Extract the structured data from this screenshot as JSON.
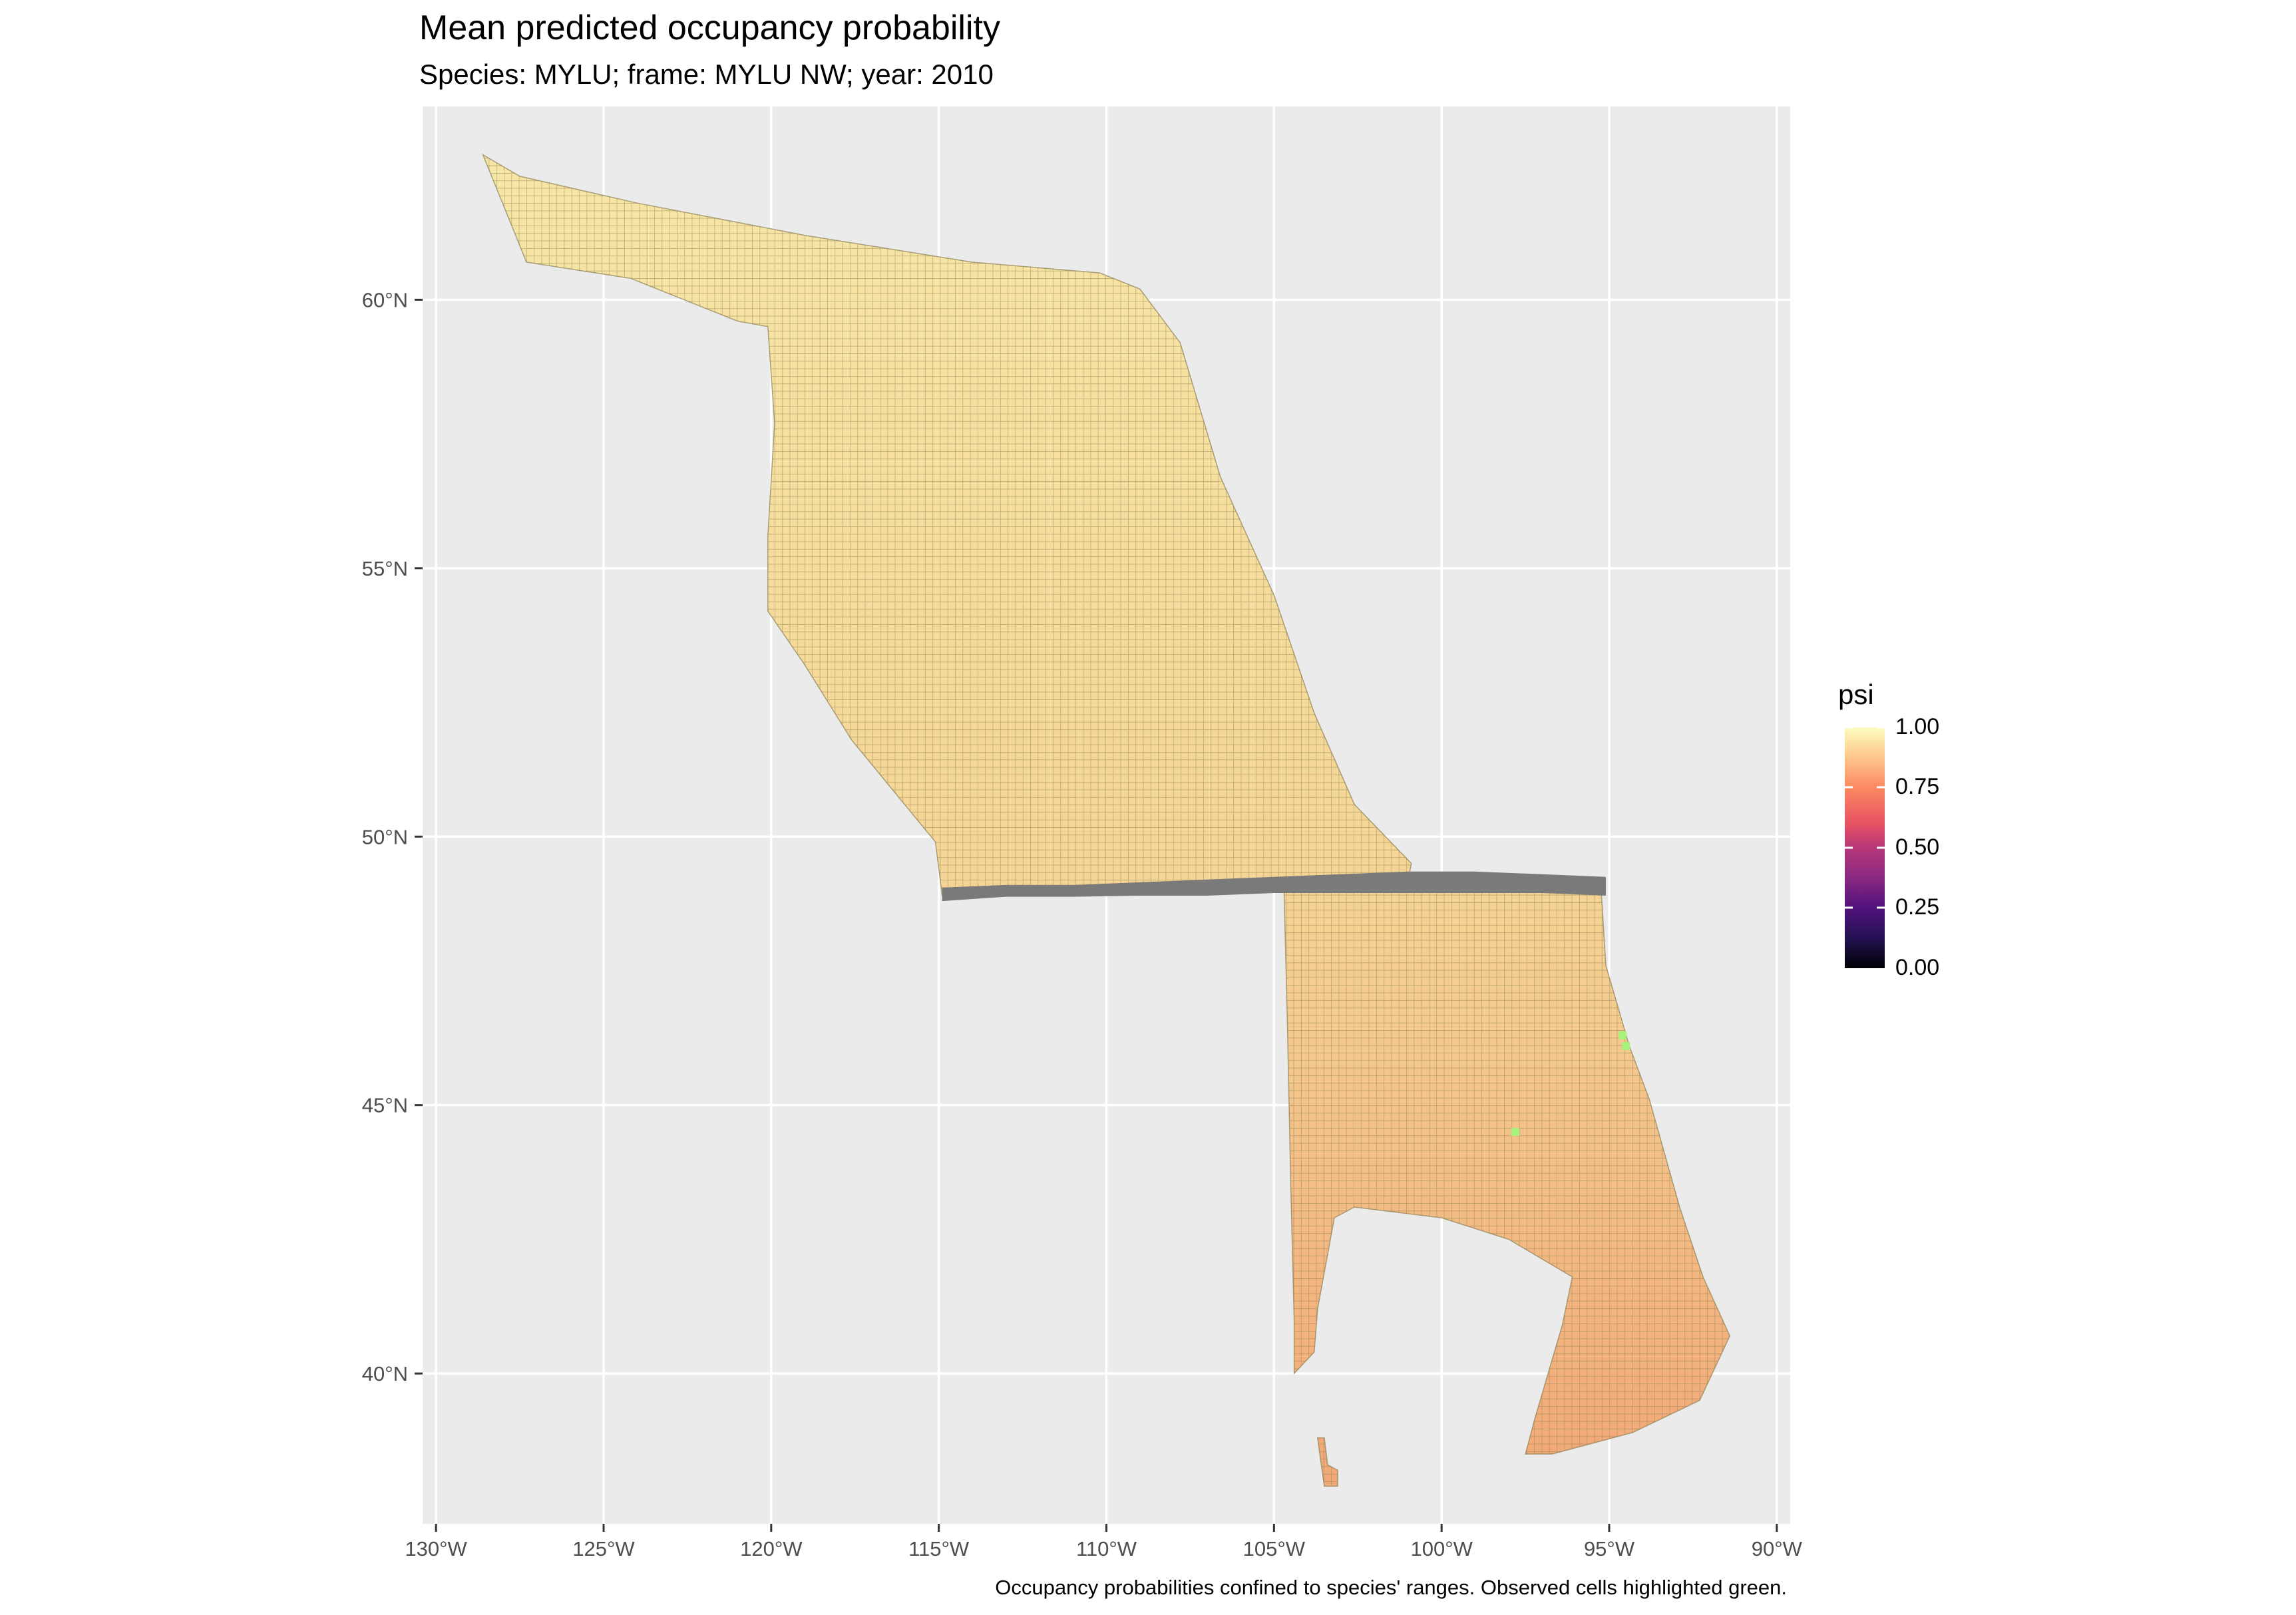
{
  "title": "Mean predicted occupancy probability",
  "subtitle": "Species: MYLU; frame: MYLU NW; year: 2010",
  "caption": "Occupancy probabilities confined to species' ranges. Observed cells highlighted green.",
  "legend": {
    "title": "psi",
    "ticks": [
      "1.00",
      "0.75",
      "0.50",
      "0.25",
      "0.00"
    ],
    "colors": [
      "#FCFDBF",
      "#FC8961",
      "#B73779",
      "#51127C",
      "#000004"
    ]
  },
  "axes": {
    "x_ticks": [
      "130°W",
      "125°W",
      "120°W",
      "115°W",
      "110°W",
      "105°W",
      "100°W",
      "95°W",
      "90°W"
    ],
    "y_ticks": [
      "60°N",
      "55°N",
      "50°N",
      "45°N",
      "40°N"
    ],
    "lon_values": [
      -130,
      -125,
      -120,
      -115,
      -110,
      -105,
      -100,
      -95,
      -90
    ],
    "lat_values": [
      60,
      55,
      50,
      45,
      40
    ],
    "lon_range": [
      -130.4,
      -89.6
    ],
    "lat_range": [
      37.2,
      63.6
    ]
  },
  "colors": {
    "panel_background": "#EBEBEB",
    "grid": "#FFFFFF",
    "region_fill_north": "#F6E6A6",
    "region_fill_south": "#F3B27A",
    "cell_outline": "#8C7F52",
    "missing_band": "#7A7A7A",
    "observed": "#A6F27A"
  },
  "map_regions": [
    {
      "name": "canada-region",
      "outline_lonlat": [
        [
          -128.6,
          62.7
        ],
        [
          -127.5,
          62.3
        ],
        [
          -124,
          61.8
        ],
        [
          -119,
          61.2
        ],
        [
          -114,
          60.7
        ],
        [
          -110.2,
          60.5
        ],
        [
          -109,
          60.2
        ],
        [
          -107.8,
          59.2
        ],
        [
          -106.6,
          56.7
        ],
        [
          -105,
          54.5
        ],
        [
          -103.8,
          52.3
        ],
        [
          -102.6,
          50.6
        ],
        [
          -100.9,
          49.5
        ],
        [
          -101,
          49.2
        ],
        [
          -103,
          49.1
        ],
        [
          -105,
          49.05
        ],
        [
          -107,
          49.0
        ],
        [
          -109,
          49.0
        ],
        [
          -111,
          48.95
        ],
        [
          -113,
          48.95
        ],
        [
          -114.9,
          48.9
        ],
        [
          -115.1,
          49.9
        ],
        [
          -117.6,
          51.8
        ],
        [
          -119,
          53.2
        ],
        [
          -120.1,
          54.2
        ],
        [
          -120.1,
          55.6
        ],
        [
          -119.9,
          57.7
        ],
        [
          -120.1,
          59.5
        ],
        [
          -121,
          59.6
        ],
        [
          -124.2,
          60.4
        ],
        [
          -127.3,
          60.7
        ]
      ]
    },
    {
      "name": "us-region",
      "outline_lonlat": [
        [
          -104.7,
          49.0
        ],
        [
          -103,
          48.98
        ],
        [
          -101,
          48.98
        ],
        [
          -99,
          49.05
        ],
        [
          -97,
          49.1
        ],
        [
          -95.25,
          49.1
        ],
        [
          -95.1,
          47.6
        ],
        [
          -94.4,
          46.1
        ],
        [
          -93.8,
          45.1
        ],
        [
          -92.9,
          43.1
        ],
        [
          -92.2,
          41.8
        ],
        [
          -91.4,
          40.7
        ],
        [
          -92.3,
          39.5
        ],
        [
          -94.3,
          38.9
        ],
        [
          -96.7,
          38.5
        ],
        [
          -97.5,
          38.5
        ],
        [
          -97.2,
          39.2
        ],
        [
          -96.4,
          40.9
        ],
        [
          -96.1,
          41.8
        ],
        [
          -98,
          42.5
        ],
        [
          -100,
          42.9
        ],
        [
          -102.6,
          43.1
        ],
        [
          -103.2,
          42.9
        ],
        [
          -103.7,
          41.2
        ],
        [
          -103.8,
          40.4
        ],
        [
          -104.4,
          40.0
        ],
        [
          -104.4,
          41.0
        ],
        [
          -104.5,
          43.5
        ],
        [
          -104.6,
          46.5
        ]
      ]
    },
    {
      "name": "southern-fragment",
      "outline_lonlat": [
        [
          -103.7,
          38.8
        ],
        [
          -103.5,
          38.8
        ],
        [
          -103.4,
          38.3
        ],
        [
          -103.1,
          38.2
        ],
        [
          -103.1,
          37.9
        ],
        [
          -103.5,
          37.9
        ]
      ]
    }
  ],
  "missing_band_lonlat": [
    [
      -114.9,
      49.05
    ],
    [
      -113,
      49.1
    ],
    [
      -111,
      49.1
    ],
    [
      -109,
      49.15
    ],
    [
      -107,
      49.2
    ],
    [
      -105,
      49.25
    ],
    [
      -103,
      49.3
    ],
    [
      -101,
      49.35
    ],
    [
      -99,
      49.35
    ],
    [
      -97,
      49.3
    ],
    [
      -95.1,
      49.25
    ],
    [
      -95.1,
      48.9
    ],
    [
      -97,
      48.95
    ],
    [
      -99,
      48.95
    ],
    [
      -101,
      48.95
    ],
    [
      -103,
      48.95
    ],
    [
      -105,
      48.95
    ],
    [
      -107,
      48.9
    ],
    [
      -109,
      48.9
    ],
    [
      -111,
      48.88
    ],
    [
      -113,
      48.88
    ],
    [
      -114.9,
      48.8
    ]
  ],
  "observed_points_lonlat": [
    [
      -94.6,
      46.3
    ],
    [
      -94.5,
      46.1
    ],
    [
      -97.8,
      44.5
    ]
  ]
}
